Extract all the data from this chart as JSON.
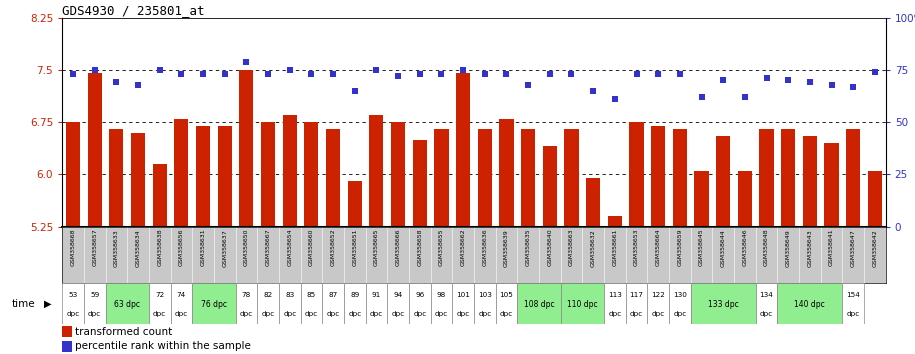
{
  "title": "GDS4930 / 235801_at",
  "samples": [
    "GSM358668",
    "GSM358657",
    "GSM358633",
    "GSM358634",
    "GSM358638",
    "GSM358656",
    "GSM358631",
    "GSM358637",
    "GSM358650",
    "GSM358667",
    "GSM358654",
    "GSM358660",
    "GSM358652",
    "GSM358651",
    "GSM358665",
    "GSM358666",
    "GSM358658",
    "GSM358655",
    "GSM358662",
    "GSM358636",
    "GSM358639",
    "GSM358635",
    "GSM358640",
    "GSM358663",
    "GSM358632",
    "GSM358661",
    "GSM358653",
    "GSM358664",
    "GSM358659",
    "GSM358645",
    "GSM358644",
    "GSM358646",
    "GSM358648",
    "GSM358649",
    "GSM358643",
    "GSM358641",
    "GSM358647",
    "GSM358642"
  ],
  "bar_values": [
    6.75,
    7.45,
    6.65,
    6.6,
    6.15,
    6.8,
    6.7,
    6.7,
    7.5,
    6.75,
    6.85,
    6.75,
    6.65,
    5.9,
    6.85,
    6.75,
    6.5,
    6.65,
    7.45,
    6.65,
    6.8,
    6.65,
    6.4,
    6.65,
    5.95,
    5.4,
    6.75,
    6.7,
    6.65,
    6.05,
    6.55,
    6.05,
    6.65,
    6.65,
    6.55,
    6.45,
    6.65,
    6.05
  ],
  "percentile_values": [
    73,
    75,
    69,
    68,
    75,
    73,
    73,
    73,
    79,
    73,
    75,
    73,
    73,
    65,
    75,
    72,
    73,
    73,
    75,
    73,
    73,
    68,
    73,
    73,
    65,
    61,
    73,
    73,
    73,
    62,
    70,
    62,
    71,
    70,
    69,
    68,
    67,
    74
  ],
  "time_groups": [
    {
      "label": "53\ndpc",
      "start": 0,
      "end": 1,
      "bg": "white"
    },
    {
      "label": "59\ndpc",
      "start": 1,
      "end": 2,
      "bg": "white"
    },
    {
      "label": "63 dpc",
      "start": 2,
      "end": 4,
      "bg": "#90ee90"
    },
    {
      "label": "72\ndpc",
      "start": 4,
      "end": 5,
      "bg": "white"
    },
    {
      "label": "74\ndpc",
      "start": 5,
      "end": 6,
      "bg": "white"
    },
    {
      "label": "76 dpc",
      "start": 6,
      "end": 8,
      "bg": "#90ee90"
    },
    {
      "label": "78\ndpc",
      "start": 8,
      "end": 9,
      "bg": "white"
    },
    {
      "label": "82\ndpc",
      "start": 9,
      "end": 10,
      "bg": "white"
    },
    {
      "label": "83\ndpc",
      "start": 10,
      "end": 11,
      "bg": "white"
    },
    {
      "label": "85\ndpc",
      "start": 11,
      "end": 12,
      "bg": "white"
    },
    {
      "label": "87\ndpc",
      "start": 12,
      "end": 13,
      "bg": "white"
    },
    {
      "label": "89\ndpc",
      "start": 13,
      "end": 14,
      "bg": "white"
    },
    {
      "label": "91\ndpc",
      "start": 14,
      "end": 15,
      "bg": "white"
    },
    {
      "label": "94\ndpc",
      "start": 15,
      "end": 16,
      "bg": "white"
    },
    {
      "label": "96\ndpc",
      "start": 16,
      "end": 17,
      "bg": "white"
    },
    {
      "label": "98\ndpc",
      "start": 17,
      "end": 18,
      "bg": "white"
    },
    {
      "label": "101\ndpc",
      "start": 18,
      "end": 19,
      "bg": "white"
    },
    {
      "label": "103\ndpc",
      "start": 19,
      "end": 20,
      "bg": "white"
    },
    {
      "label": "105\ndpc",
      "start": 20,
      "end": 21,
      "bg": "white"
    },
    {
      "label": "108 dpc",
      "start": 21,
      "end": 23,
      "bg": "#90ee90"
    },
    {
      "label": "110 dpc",
      "start": 23,
      "end": 25,
      "bg": "#90ee90"
    },
    {
      "label": "113\ndpc",
      "start": 25,
      "end": 26,
      "bg": "white"
    },
    {
      "label": "117\ndpc",
      "start": 26,
      "end": 27,
      "bg": "white"
    },
    {
      "label": "122\ndpc",
      "start": 27,
      "end": 28,
      "bg": "white"
    },
    {
      "label": "130\ndpc",
      "start": 28,
      "end": 29,
      "bg": "white"
    },
    {
      "label": "133 dpc",
      "start": 29,
      "end": 32,
      "bg": "#90ee90"
    },
    {
      "label": "134\ndpc",
      "start": 32,
      "end": 33,
      "bg": "white"
    },
    {
      "label": "140 dpc",
      "start": 33,
      "end": 36,
      "bg": "#90ee90"
    },
    {
      "label": "154\ndpc",
      "start": 36,
      "end": 37,
      "bg": "white"
    }
  ],
  "ylim_left": [
    5.25,
    8.25
  ],
  "ylim_right": [
    0,
    100
  ],
  "yticks_left": [
    5.25,
    6.0,
    6.75,
    7.5,
    8.25
  ],
  "yticks_right": [
    0,
    25,
    50,
    75,
    100
  ],
  "bar_color": "#cc2200",
  "dot_color": "#3333cc",
  "sample_bg": "#c8c8c8",
  "plot_bg": "white"
}
